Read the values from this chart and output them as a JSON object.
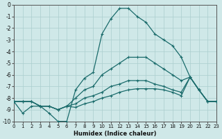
{
  "xlabel": "Humidex (Indice chaleur)",
  "xlim": [
    0,
    23
  ],
  "ylim": [
    -10,
    0
  ],
  "xticks": [
    0,
    1,
    2,
    3,
    4,
    5,
    6,
    7,
    8,
    9,
    10,
    11,
    12,
    13,
    14,
    15,
    16,
    17,
    18,
    19,
    20,
    21,
    22,
    23
  ],
  "yticks": [
    0,
    -1,
    -2,
    -3,
    -4,
    -5,
    -6,
    -7,
    -8,
    -9,
    -10
  ],
  "background_color": "#cfe8e8",
  "grid_color": "#aacece",
  "line_color": "#1a6b6b",
  "line1_y": [
    -8.3,
    -9.3,
    -8.7,
    -8.7,
    -9.3,
    -10.0,
    -10.0,
    -7.3,
    -6.3,
    -5.8,
    -2.5,
    -1.2,
    -0.3,
    -0.3,
    -1.0,
    -1.5,
    -2.5,
    -3.0,
    -3.5,
    -4.5,
    -6.2,
    -7.3,
    -8.3,
    -8.3
  ],
  "line2_y": [
    -8.3,
    -8.3,
    -8.3,
    -8.7,
    -8.7,
    -9.0,
    -8.7,
    -8.0,
    -7.3,
    -7.0,
    -6.0,
    -5.5,
    -5.0,
    -4.5,
    -4.5,
    -4.5,
    -5.0,
    -5.5,
    -6.0,
    -6.5,
    -6.2,
    -7.3,
    -8.3,
    -8.3
  ],
  "line3_y": [
    -8.3,
    -8.3,
    -8.3,
    -8.7,
    -8.7,
    -9.0,
    -8.7,
    -8.5,
    -8.0,
    -7.8,
    -7.5,
    -7.0,
    -6.8,
    -6.5,
    -6.5,
    -6.5,
    -6.8,
    -7.0,
    -7.3,
    -7.5,
    -6.2,
    -7.3,
    -8.3,
    -8.3
  ],
  "line4_y": [
    -8.3,
    -8.3,
    -8.3,
    -8.7,
    -8.7,
    -9.0,
    -8.7,
    -8.8,
    -8.5,
    -8.3,
    -8.0,
    -7.8,
    -7.5,
    -7.3,
    -7.2,
    -7.2,
    -7.2,
    -7.3,
    -7.5,
    -7.8,
    -6.2,
    -7.3,
    -8.3,
    -8.3
  ]
}
